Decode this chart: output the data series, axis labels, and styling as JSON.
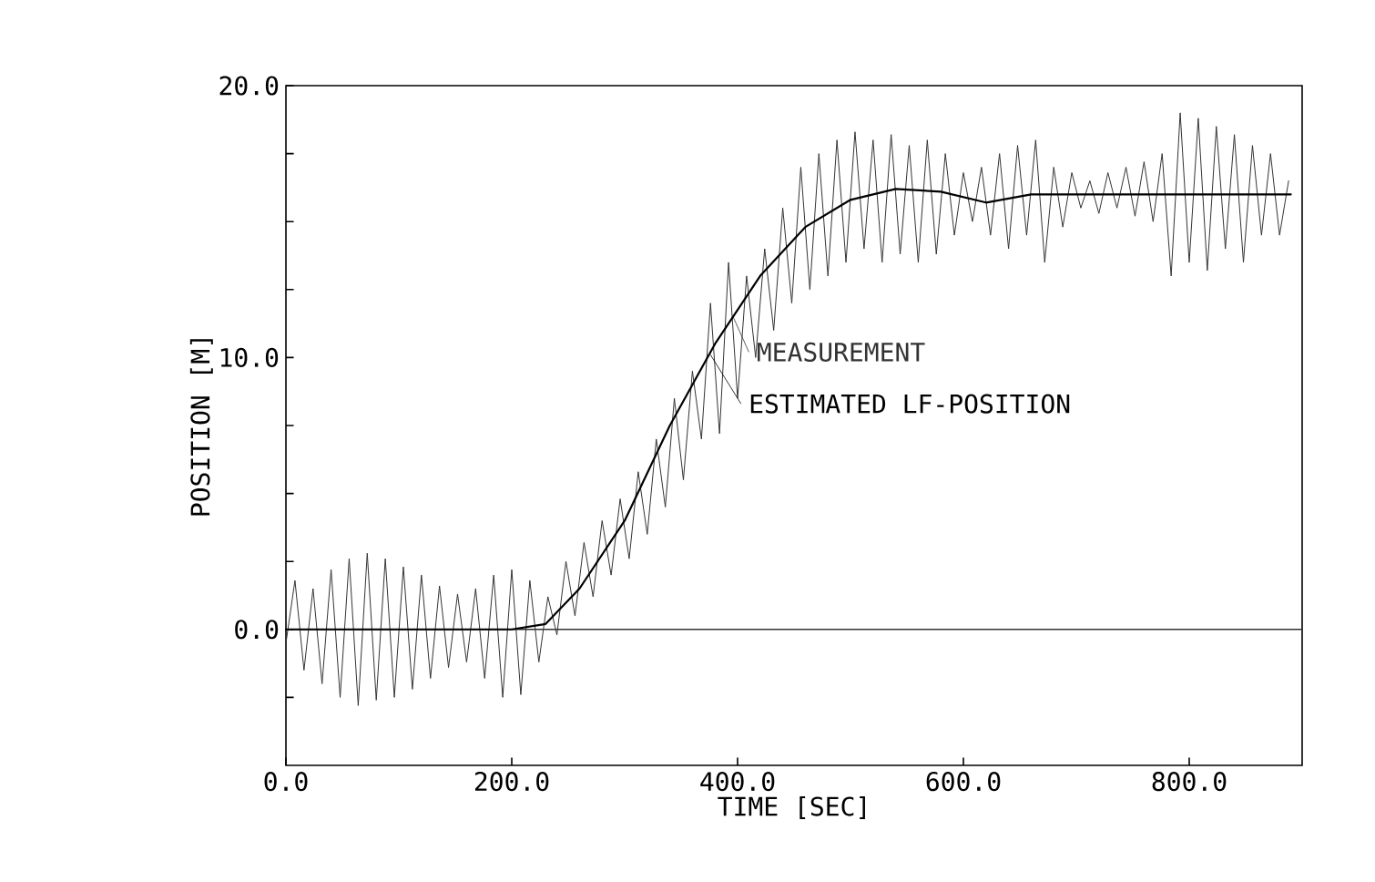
{
  "chart_data": {
    "type": "line",
    "xlabel": "TIME [SEC]",
    "ylabel": "POSITION [M]",
    "xlim": [
      0,
      900
    ],
    "ylim": [
      -5,
      20
    ],
    "xticks": [
      {
        "value": 0,
        "label": "0.0"
      },
      {
        "value": 200,
        "label": "200.0"
      },
      {
        "value": 400,
        "label": "400.0"
      },
      {
        "value": 600,
        "label": "600.0"
      },
      {
        "value": 800,
        "label": "800.0"
      }
    ],
    "yticks": [
      {
        "value": -2.5,
        "label": null
      },
      {
        "value": 0,
        "label": "0.0"
      },
      {
        "value": 2.5,
        "label": null
      },
      {
        "value": 5,
        "label": null
      },
      {
        "value": 7.5,
        "label": null
      },
      {
        "value": 10,
        "label": "10.0"
      },
      {
        "value": 12.5,
        "label": null
      },
      {
        "value": 15,
        "label": null
      },
      {
        "value": 17.5,
        "label": null
      },
      {
        "value": 20,
        "label": "20.0"
      }
    ],
    "legend": "center",
    "ref_lines": [
      {
        "axis": "y",
        "value": 0,
        "color": "#333333"
      }
    ],
    "series": [
      {
        "name": "MEASUREMENT",
        "color": "#333333",
        "x": [
          0,
          8,
          16,
          24,
          32,
          40,
          48,
          56,
          64,
          72,
          80,
          88,
          96,
          104,
          112,
          120,
          128,
          136,
          144,
          152,
          160,
          168,
          176,
          184,
          192,
          200,
          208,
          216,
          224,
          232,
          240,
          248,
          256,
          264,
          272,
          280,
          288,
          296,
          304,
          312,
          320,
          328,
          336,
          344,
          352,
          360,
          368,
          376,
          384,
          392,
          400,
          408,
          416,
          424,
          432,
          440,
          448,
          456,
          464,
          472,
          480,
          488,
          496,
          504,
          512,
          520,
          528,
          536,
          544,
          552,
          560,
          568,
          576,
          584,
          592,
          600,
          608,
          616,
          624,
          632,
          640,
          648,
          656,
          664,
          672,
          680,
          688,
          696,
          704,
          712,
          720,
          728,
          736,
          744,
          752,
          760,
          768,
          776,
          784,
          792,
          800,
          808,
          816,
          824,
          832,
          840,
          848,
          856,
          864,
          872,
          880,
          888
        ],
        "values": [
          -0.5,
          1.8,
          -1.5,
          1.5,
          -2,
          2.2,
          -2.5,
          2.6,
          -2.8,
          2.8,
          -2.6,
          2.6,
          -2.5,
          2.3,
          -2.2,
          2,
          -1.8,
          1.6,
          -1.4,
          1.3,
          -1.2,
          1.5,
          -1.8,
          2,
          -2.5,
          2.2,
          -2.4,
          1.8,
          -1.2,
          1.2,
          -0.2,
          2.5,
          0.5,
          3.2,
          1.2,
          4,
          2,
          4.8,
          2.6,
          5.8,
          3.5,
          7,
          4.5,
          8.5,
          5.5,
          9.5,
          7,
          12,
          7.2,
          13.5,
          8.5,
          13,
          10,
          14,
          11,
          15.5,
          12,
          17,
          12.5,
          17.5,
          13,
          18,
          13.5,
          18.3,
          14,
          18,
          13.5,
          18.2,
          13.8,
          17.8,
          13.5,
          18,
          13.8,
          17.5,
          14.5,
          16.8,
          15,
          17,
          14.5,
          17.5,
          14,
          17.8,
          14.5,
          18,
          13.5,
          17,
          14.8,
          16.8,
          15.5,
          16.5,
          15.3,
          16.8,
          15.5,
          17,
          15.2,
          17.2,
          15,
          17.5,
          13,
          19,
          13.5,
          18.8,
          13.2,
          18.5,
          14,
          18.2,
          13.5,
          17.8,
          14.5,
          17.5,
          14.5,
          16.5
        ]
      },
      {
        "name": "ESTIMATED LF-POSITION",
        "color": "#000000",
        "x": [
          0,
          100,
          200,
          230,
          260,
          300,
          340,
          380,
          420,
          460,
          500,
          540,
          580,
          620,
          660,
          700,
          800,
          890
        ],
        "values": [
          0,
          0,
          0,
          0.2,
          1.5,
          4,
          7.5,
          10.5,
          13,
          14.8,
          15.8,
          16.2,
          16.1,
          15.7,
          16,
          16,
          16,
          16
        ]
      }
    ]
  }
}
